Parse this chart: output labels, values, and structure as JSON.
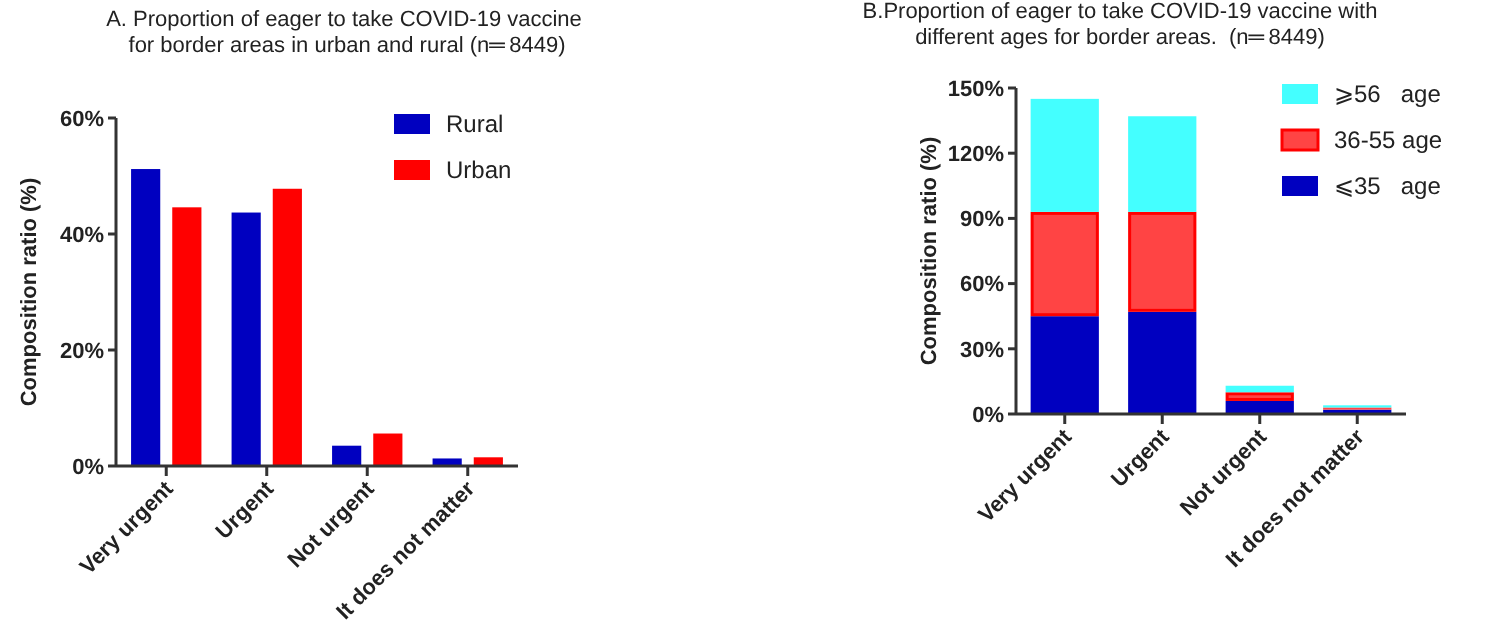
{
  "chart_data": [
    {
      "type": "bar",
      "title": "A. Proportion of eager to take COVID-19 vaccine\n for border areas in urban and rural (n═ 8449)",
      "ylabel": "Composition ratio (%)",
      "categories": [
        "Very urgent",
        "Urgent",
        "Not urgent",
        "It does not matter"
      ],
      "series": [
        {
          "name": "Rural",
          "color": "#0000c0",
          "values": [
            51.2,
            43.7,
            3.5,
            1.3
          ]
        },
        {
          "name": "Urban",
          "color": "#ff0000",
          "values": [
            44.6,
            47.8,
            5.6,
            1.5
          ]
        }
      ],
      "ylim": [
        0,
        60
      ],
      "yticks": [
        {
          "value": 0,
          "label": "0%"
        },
        {
          "value": 20,
          "label": "20%"
        },
        {
          "value": 40,
          "label": "40%"
        },
        {
          "value": 60,
          "label": "60%"
        }
      ],
      "grid": false,
      "legend": "top right"
    },
    {
      "type": "bar",
      "stacked": true,
      "title": "B.Proportion of eager to take COVID-19 vaccine with\ndifferent ages for border areas.  (n═ 8449)",
      "ylabel": "Composition ratio (%)",
      "categories": [
        "Very urgent",
        "Urgent",
        "Not urgent",
        "It does not matter"
      ],
      "series": [
        {
          "name": "⩽35   age",
          "color": "#0000c0",
          "values": [
            45,
            47,
            6,
            2
          ]
        },
        {
          "name": "36-55 age",
          "color": "#ff4444",
          "values": [
            48,
            46,
            4,
            1
          ]
        },
        {
          "name": "⩾56   age",
          "color": "#44ffff",
          "values": [
            52,
            44,
            3,
            1
          ]
        }
      ],
      "ylim": [
        0,
        150
      ],
      "yticks": [
        {
          "value": 0,
          "label": "0%"
        },
        {
          "value": 30,
          "label": "30%"
        },
        {
          "value": 60,
          "label": "60%"
        },
        {
          "value": 90,
          "label": "90%"
        },
        {
          "value": 120,
          "label": "120%"
        },
        {
          "value": 150,
          "label": "150%"
        }
      ],
      "grid": false,
      "legend": "top right"
    }
  ]
}
